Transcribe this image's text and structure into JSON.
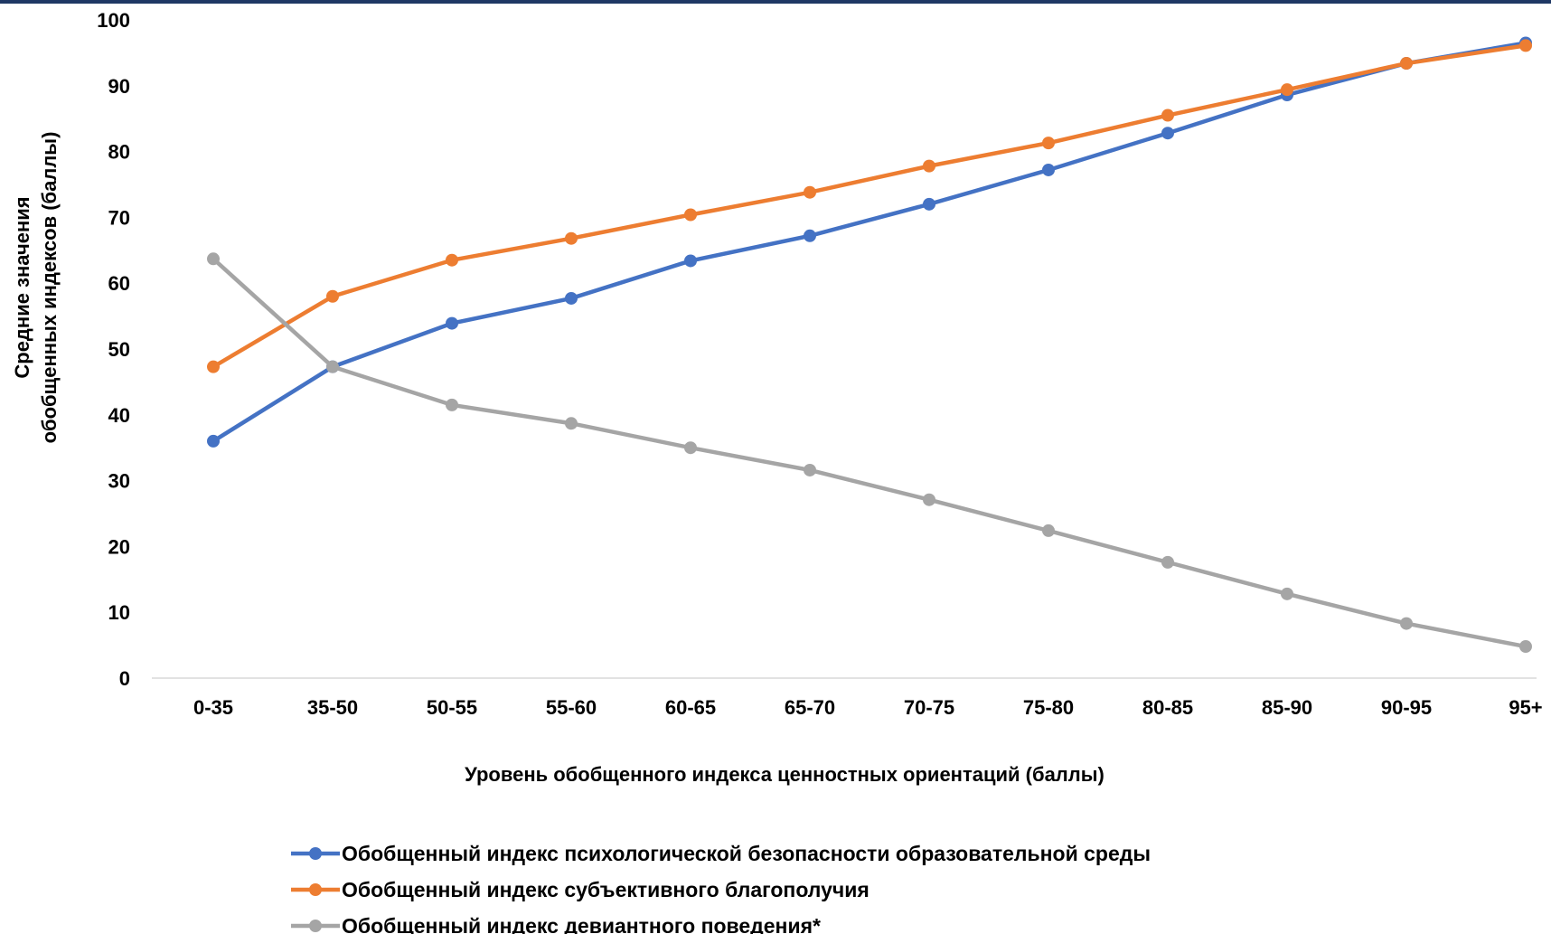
{
  "chart_data": {
    "type": "line",
    "categories": [
      "0-35",
      "35-50",
      "50-55",
      "55-60",
      "60-65",
      "65-70",
      "70-75",
      "75-80",
      "80-85",
      "85-90",
      "90-95",
      "95+"
    ],
    "ylim": [
      0,
      100
    ],
    "yticks": [
      0,
      10,
      20,
      30,
      40,
      50,
      60,
      70,
      80,
      90,
      100
    ],
    "ylabel_lines": [
      "Средние значения",
      "обобщенных индексов (баллы)"
    ],
    "xlabel": "Уровень обобщенного индекса ценностных ориентаций (баллы)",
    "grid": false,
    "legend_position": "bottom",
    "series": [
      {
        "name": "Обобщенный индекс психологической безопасности образовательной среды",
        "color": "#4472c4",
        "values": [
          36.0,
          47.3,
          53.9,
          57.7,
          63.4,
          67.2,
          72.0,
          77.2,
          82.8,
          88.6,
          93.4,
          96.5
        ]
      },
      {
        "name": "Обобщенный индекс субъективного благополучия",
        "color": "#ed7d31",
        "values": [
          47.3,
          58.0,
          63.5,
          66.8,
          70.4,
          73.8,
          77.8,
          81.3,
          85.5,
          89.4,
          93.4,
          96.1
        ]
      },
      {
        "name": "Обобщенный индекс девиантного поведения*",
        "color": "#a5a5a5",
        "values": [
          63.7,
          47.3,
          41.5,
          38.7,
          35.0,
          31.6,
          27.1,
          22.4,
          17.6,
          12.8,
          8.3,
          4.8
        ]
      }
    ]
  },
  "colors": {
    "top_border": "#1f3864",
    "axis_line": "#d9d9d9"
  }
}
